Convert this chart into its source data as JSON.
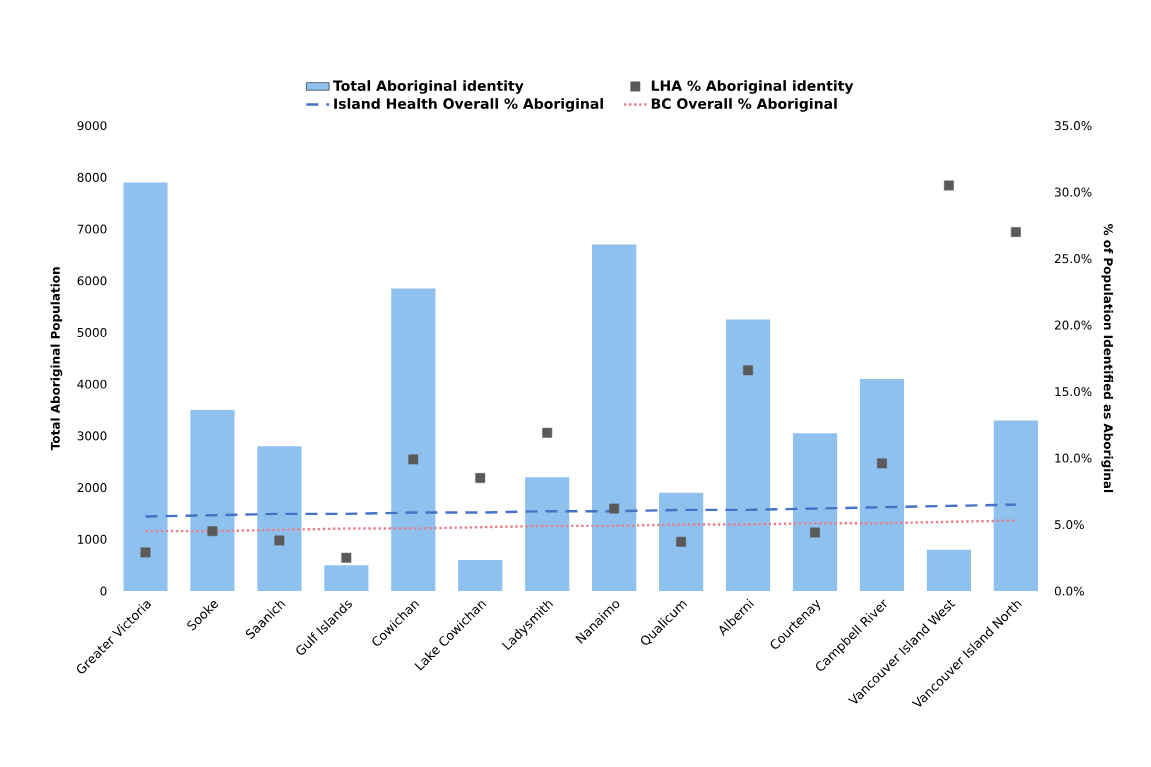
{
  "chart_data": {
    "type": "bar",
    "categories": [
      "Greater Victoria",
      "Sooke",
      "Saanich",
      "Gulf Islands",
      "Cowichan",
      "Lake Cowichan",
      "Ladysmith",
      "Nanaimo",
      "Qualicum",
      "Alberni",
      "Courtenay",
      "Campbell River",
      "Vancouver Island West",
      "Vancouver Island North"
    ],
    "series": [
      {
        "name": "Total Aboriginal identity",
        "color": "#8fc1ee",
        "values": [
          7900,
          3500,
          2800,
          500,
          5850,
          600,
          2200,
          6700,
          1900,
          5250,
          3050,
          4100,
          800,
          3300
        ]
      },
      {
        "name": "LHA % Aboriginal identity",
        "type": "scatter",
        "axis": "y2",
        "marker": "square",
        "color": "#5a5a5a",
        "values": [
          2.9,
          4.5,
          3.8,
          2.5,
          9.9,
          8.5,
          11.9,
          6.2,
          3.7,
          16.6,
          4.4,
          9.6,
          30.5,
          27.0
        ]
      },
      {
        "name": "Island Health Overall % Aboriginal",
        "type": "line",
        "axis": "y2",
        "line_style": "dashed",
        "marker": "none",
        "color": "#4472c4",
        "values": [
          5.6,
          5.7,
          5.8,
          5.8,
          5.9,
          5.9,
          6.0,
          6.0,
          6.1,
          6.1,
          6.2,
          6.3,
          6.4,
          6.5
        ]
      },
      {
        "name": "BC Overall % Aboriginal",
        "type": "line",
        "axis": "y2",
        "line_style": "dotted",
        "marker": "none",
        "color": "#e8808c",
        "values": [
          4.5,
          4.5,
          4.6,
          4.7,
          4.7,
          4.8,
          4.9,
          4.9,
          5.0,
          5.0,
          5.1,
          5.1,
          5.2,
          5.3
        ]
      }
    ],
    "ylabel": "Total Aboriginal Population",
    "y2label": "% of Population Identified as Aboriginal",
    "ylim": [
      0,
      9000
    ],
    "yticks": [
      0,
      1000,
      2000,
      3000,
      4000,
      5000,
      6000,
      7000,
      8000,
      9000
    ],
    "y2lim": [
      0,
      35
    ],
    "y2ticks": [
      {
        "value": 0,
        "label": "0.0%"
      },
      {
        "value": 5,
        "label": "5.0%"
      },
      {
        "value": 10,
        "label": "10.0%"
      },
      {
        "value": 15,
        "label": "15.0%"
      },
      {
        "value": 20,
        "label": "20.0%"
      },
      {
        "value": 25,
        "label": "25.0%"
      },
      {
        "value": 30,
        "label": "30.0%"
      },
      {
        "value": 35,
        "label": "35.0%"
      }
    ],
    "legend": "top",
    "grid": false
  }
}
